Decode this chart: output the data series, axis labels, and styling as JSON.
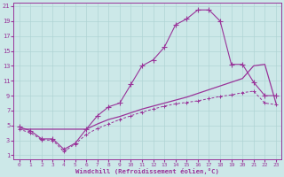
{
  "xlabel": "Windchill (Refroidissement éolien,°C)",
  "background_color": "#cce8e8",
  "grid_color": "#b0d4d4",
  "line_color": "#993399",
  "x_min": 0,
  "x_max": 23,
  "y_min": 1,
  "y_max": 21,
  "y_ticks": [
    1,
    3,
    5,
    7,
    9,
    11,
    13,
    15,
    17,
    19,
    21
  ],
  "x_ticks": [
    0,
    1,
    2,
    3,
    4,
    5,
    6,
    7,
    8,
    9,
    10,
    11,
    12,
    13,
    14,
    15,
    16,
    17,
    18,
    19,
    20,
    21,
    22,
    23
  ],
  "line1_x": [
    0,
    1,
    2,
    3,
    4,
    5,
    6,
    7,
    8,
    9,
    10,
    11,
    12,
    13,
    14,
    15,
    16,
    17,
    18,
    19,
    20,
    21,
    22,
    23
  ],
  "line1_y": [
    4.8,
    4.3,
    3.2,
    3.2,
    1.8,
    2.6,
    4.5,
    6.3,
    7.5,
    8.0,
    10.5,
    13.0,
    13.8,
    15.5,
    18.5,
    19.3,
    20.5,
    20.5,
    19.0,
    13.2,
    13.2,
    10.8,
    9.0,
    9.0
  ],
  "line2_x": [
    0,
    1,
    2,
    3,
    4,
    5,
    6,
    7,
    8,
    9,
    10,
    11,
    12,
    13,
    14,
    15,
    16,
    17,
    18,
    19,
    20,
    21,
    22,
    23
  ],
  "line2_y": [
    4.5,
    4.0,
    3.1,
    3.0,
    1.5,
    2.5,
    3.8,
    4.6,
    5.2,
    5.8,
    6.3,
    6.8,
    7.2,
    7.6,
    7.9,
    8.1,
    8.3,
    8.6,
    8.9,
    9.1,
    9.4,
    9.6,
    8.0,
    7.8
  ],
  "line3_x": [
    0,
    6,
    7,
    8,
    9,
    10,
    11,
    12,
    13,
    14,
    15,
    16,
    17,
    18,
    19,
    20,
    21,
    22,
    23
  ],
  "line3_y": [
    4.5,
    4.5,
    5.2,
    5.8,
    6.2,
    6.7,
    7.2,
    7.6,
    8.0,
    8.4,
    8.8,
    9.3,
    9.8,
    10.3,
    10.8,
    11.3,
    13.0,
    13.2,
    8.0
  ]
}
